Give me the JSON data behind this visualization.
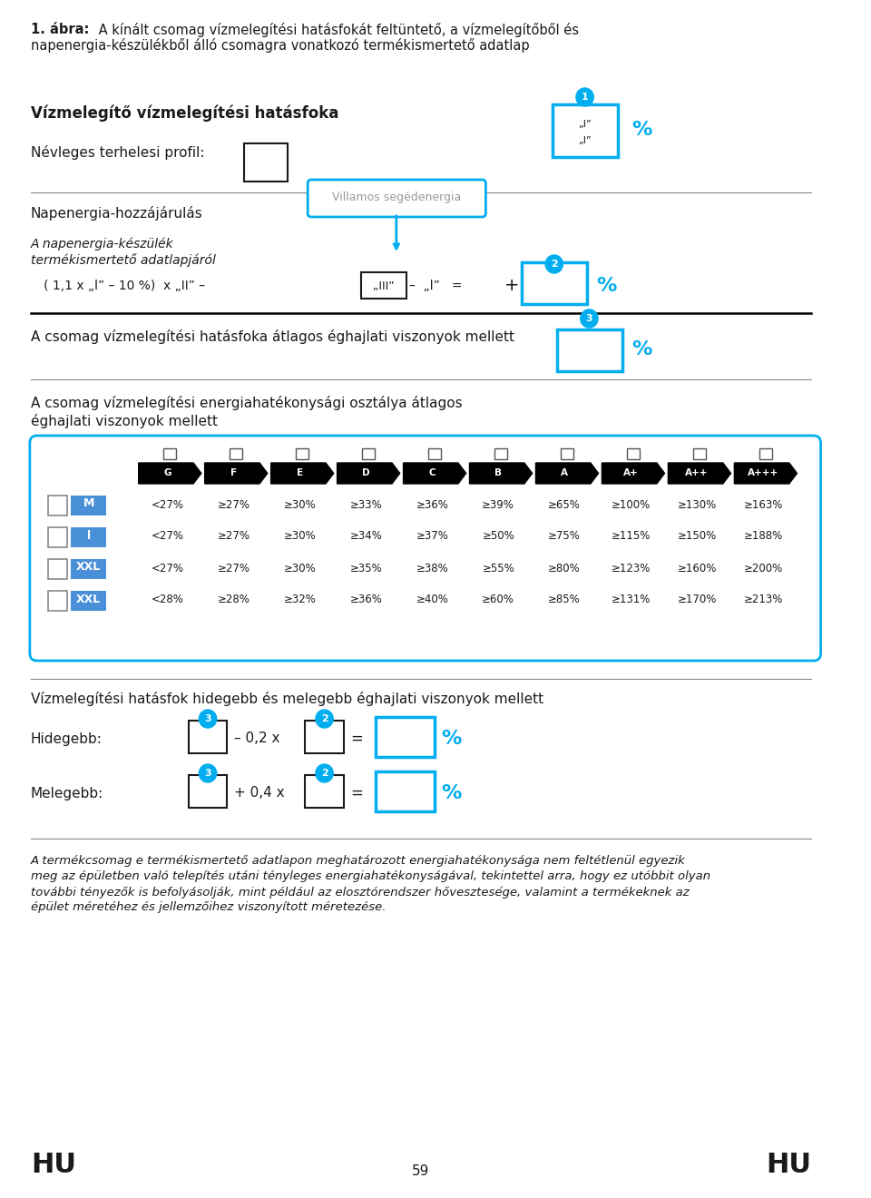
{
  "title_bold": "1. ábra:",
  "title_rest": " A kínált csomag vízmelegítési hatásfokát feltüntető, a vízmelegítőből és",
  "title_line2": "napenergia-készülékből álló csomagra vonatkozó termékismertető adatlap",
  "section1_title": "Vízmelegítő vízmelegítési hatásfoka",
  "section1_sub": "Névleges terhelesi profil:",
  "section2_title": "Napenergia-hozzájárulás",
  "section2_sub1": "A napenergia-készülék",
  "section2_sub2": "termékismertető adatlapjáról",
  "section2_formula_left": "( 1,1 x „l” – 10 %)  x „II” –",
  "section2_formula_box": "„III”",
  "section2_formula_right": "–  „l”   =",
  "section2_villamos": "Villamos segédenergia",
  "section2_plus": "+",
  "section2_percent": "%",
  "section3_title_line1": "A csomag vízmelegítési hatásfoka átlagos éghajlati viszonyok mellett",
  "section3_percent": "%",
  "section4_title_line1": "A csomag vízmelegítési energiahatékonysági osztálya átlagos",
  "section4_title_line2": "éghajlati viszonyok mellett",
  "energy_classes": [
    "G",
    "F",
    "E",
    "D",
    "C",
    "B",
    "A",
    "A+",
    "A++",
    "A+++"
  ],
  "rows": [
    {
      "label": "M",
      "values": [
        "<27%",
        "≥27%",
        "≥30%",
        "≥33%",
        "≥36%",
        "≥39%",
        "≥65%",
        "≥100%",
        "≥130%",
        "≥163%"
      ]
    },
    {
      "label": "l",
      "values": [
        "<27%",
        "≥27%",
        "≥30%",
        "≥34%",
        "≥37%",
        "≥50%",
        "≥75%",
        "≥115%",
        "≥150%",
        "≥188%"
      ]
    },
    {
      "label": "XXL",
      "values": [
        "<27%",
        "≥27%",
        "≥30%",
        "≥35%",
        "≥38%",
        "≥55%",
        "≥80%",
        "≥123%",
        "≥160%",
        "≥200%"
      ]
    },
    {
      "label": "XXL",
      "values": [
        "<28%",
        "≥28%",
        "≥32%",
        "≥36%",
        "≥40%",
        "≥60%",
        "≥85%",
        "≥131%",
        "≥170%",
        "≥213%"
      ]
    }
  ],
  "section5_title": "Vízmelegítési hatásfok hidegebb és melegebb éghajlati viszonyok mellett",
  "hidegebb_label": "Hidegebb:",
  "melegebb_label": "Melegebb:",
  "hidegebb_formula": "– 0,2 x",
  "melegebb_formula": "+ 0,4 x",
  "equals": "=",
  "percent": "%",
  "footer_lines": [
    "A termékcsomag e termékismertető adatlapon meghatározott energiahatékonysága nem feltétlenül egyezik",
    "meg az épületben való telepítés utáni tényleges energiahatékonyságával, tekintettel arra, hogy ez utóbbit olyan",
    "további tényezők is befolyásolják, mint például az elosztórendszer hővesztesége, valamint a termékeknek az",
    "épület méretéhez és jellemzőihez viszonyított méretezése."
  ],
  "page_number": "59",
  "hu_label": "HU",
  "cyan_color": "#00AEEF",
  "dark_color": "#1a1a1a",
  "blue_label_color": "#4A90D9",
  "gray_color": "#888888",
  "light_gray": "#999999"
}
